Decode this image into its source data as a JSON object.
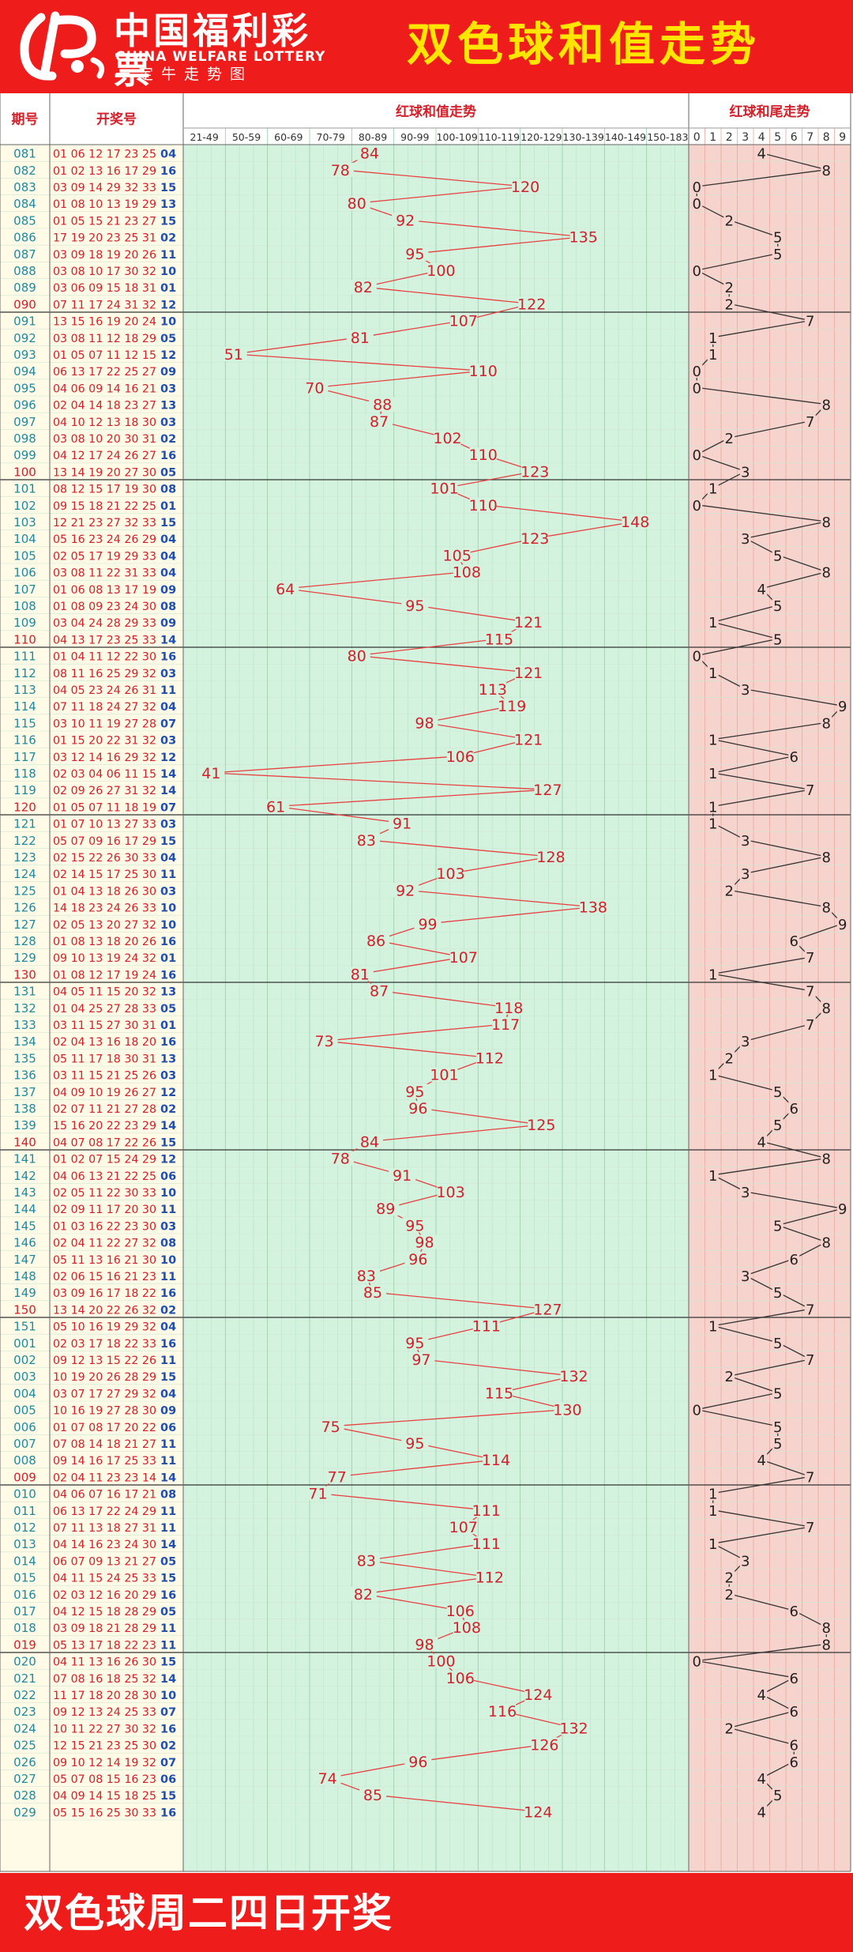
{
  "header": {
    "logo_cn": "中国福利彩票",
    "logo_en": "CHINA WELFARE LOTTERY",
    "logo_sub": "一定牛走势图",
    "title": "双色球和值走势"
  },
  "footer": {
    "text": "双色球周二四日开奖"
  },
  "colors": {
    "brand_red": "#ef1c1c",
    "title_yellow": "#ffe600",
    "issue_blue": "#1e8aa0",
    "red_ball": "#d4202a",
    "blue_ball": "#1f4fb0",
    "sum_panel": "#d4f3df",
    "tail_panel": "#f6d3cc",
    "sum_line": "#e84040",
    "tail_line": "#333333"
  },
  "chart_data": {
    "type": "line",
    "column_headers": {
      "issue": "期号",
      "draw": "开奖号",
      "sum": "红球和值走势",
      "tail": "红球和尾走势"
    },
    "sum_bins": [
      "21-49",
      "50-59",
      "60-69",
      "70-79",
      "80-89",
      "90-99",
      "100-109",
      "110-119",
      "120-129",
      "130-139",
      "140-149",
      "150-183"
    ],
    "tail_digits": [
      "0",
      "1",
      "2",
      "3",
      "4",
      "5",
      "6",
      "7",
      "8",
      "9"
    ],
    "rows": [
      {
        "issue": "081",
        "reds": "01 06 12 17 23 25",
        "blue": "04",
        "sum": "84",
        "tail": "4"
      },
      {
        "issue": "082",
        "reds": "01 02 13 16 17 29",
        "blue": "16",
        "sum": "78",
        "tail": "8"
      },
      {
        "issue": "083",
        "reds": "03 09 14 29 32 33",
        "blue": "15",
        "sum": "120",
        "tail": "0"
      },
      {
        "issue": "084",
        "reds": "01 08 10 13 19 29",
        "blue": "13",
        "sum": "80",
        "tail": "0"
      },
      {
        "issue": "085",
        "reds": "01 05 15 21 23 27",
        "blue": "15",
        "sum": "92",
        "tail": "2"
      },
      {
        "issue": "086",
        "reds": "17 19 20 23 25 31",
        "blue": "02",
        "sum": "135",
        "tail": "5"
      },
      {
        "issue": "087",
        "reds": "03 09 18 19 20 26",
        "blue": "11",
        "sum": "95",
        "tail": "5"
      },
      {
        "issue": "088",
        "reds": "03 08 10 17 30 32",
        "blue": "10",
        "sum": "100",
        "tail": "0"
      },
      {
        "issue": "089",
        "reds": "03 06 09 15 18 31",
        "blue": "01",
        "sum": "82",
        "tail": "2"
      },
      {
        "issue": "090",
        "reds": "07 11 17 24 31 32",
        "blue": "12",
        "sum": "122",
        "tail": "2"
      },
      {
        "issue": "091",
        "reds": "13 15 16 19 20 24",
        "blue": "10",
        "sum": "107",
        "tail": "7"
      },
      {
        "issue": "092",
        "reds": "03 08 11 12 18 29",
        "blue": "05",
        "sum": "81",
        "tail": "1"
      },
      {
        "issue": "093",
        "reds": "01 05 07 11 12 15",
        "blue": "12",
        "sum": "51",
        "tail": "1"
      },
      {
        "issue": "094",
        "reds": "06 13 17 22 25 27",
        "blue": "09",
        "sum": "110",
        "tail": "0"
      },
      {
        "issue": "095",
        "reds": "04 06 09 14 16 21",
        "blue": "03",
        "sum": "70",
        "tail": "0"
      },
      {
        "issue": "096",
        "reds": "02 04 14 18 23 27",
        "blue": "13",
        "sum": "88",
        "tail": "8"
      },
      {
        "issue": "097",
        "reds": "04 10 12 13 18 30",
        "blue": "03",
        "sum": "87",
        "tail": "7"
      },
      {
        "issue": "098",
        "reds": "03 08 10 20 30 31",
        "blue": "02",
        "sum": "102",
        "tail": "2"
      },
      {
        "issue": "099",
        "reds": "04 12 17 24 26 27",
        "blue": "16",
        "sum": "110",
        "tail": "0"
      },
      {
        "issue": "100",
        "reds": "13 14 19 20 27 30",
        "blue": "05",
        "sum": "123",
        "tail": "3"
      },
      {
        "issue": "101",
        "reds": "08 12 15 17 19 30",
        "blue": "08",
        "sum": "101",
        "tail": "1"
      },
      {
        "issue": "102",
        "reds": "09 15 18 21 22 25",
        "blue": "01",
        "sum": "110",
        "tail": "0"
      },
      {
        "issue": "103",
        "reds": "12 21 23 27 32 33",
        "blue": "15",
        "sum": "148",
        "tail": "8"
      },
      {
        "issue": "104",
        "reds": "05 16 23 24 26 29",
        "blue": "04",
        "sum": "123",
        "tail": "3"
      },
      {
        "issue": "105",
        "reds": "02 05 17 19 29 33",
        "blue": "04",
        "sum": "105",
        "tail": "5"
      },
      {
        "issue": "106",
        "reds": "03 08 11 22 31 33",
        "blue": "04",
        "sum": "108",
        "tail": "8"
      },
      {
        "issue": "107",
        "reds": "01 06 08 13 17 19",
        "blue": "09",
        "sum": "64",
        "tail": "4"
      },
      {
        "issue": "108",
        "reds": "01 08 09 23 24 30",
        "blue": "08",
        "sum": "95",
        "tail": "5"
      },
      {
        "issue": "109",
        "reds": "03 04 24 28 29 33",
        "blue": "09",
        "sum": "121",
        "tail": "1"
      },
      {
        "issue": "110",
        "reds": "04 13 17 23 25 33",
        "blue": "14",
        "sum": "115",
        "tail": "5"
      },
      {
        "issue": "111",
        "reds": "01 04 11 12 22 30",
        "blue": "16",
        "sum": "80",
        "tail": "0"
      },
      {
        "issue": "112",
        "reds": "08 11 16 25 29 32",
        "blue": "03",
        "sum": "121",
        "tail": "1"
      },
      {
        "issue": "113",
        "reds": "04 05 23 24 26 31",
        "blue": "11",
        "sum": "113",
        "tail": "3"
      },
      {
        "issue": "114",
        "reds": "07 11 18 24 27 32",
        "blue": "04",
        "sum": "119",
        "tail": "9"
      },
      {
        "issue": "115",
        "reds": "03 10 11 19 27 28",
        "blue": "07",
        "sum": "98",
        "tail": "8"
      },
      {
        "issue": "116",
        "reds": "01 15 20 22 31 32",
        "blue": "03",
        "sum": "121",
        "tail": "1"
      },
      {
        "issue": "117",
        "reds": "03 12 14 16 29 32",
        "blue": "12",
        "sum": "106",
        "tail": "6"
      },
      {
        "issue": "118",
        "reds": "02 03 04 06 11 15",
        "blue": "14",
        "sum": "41",
        "tail": "1"
      },
      {
        "issue": "119",
        "reds": "02 09 26 27 31 32",
        "blue": "14",
        "sum": "127",
        "tail": "7"
      },
      {
        "issue": "120",
        "reds": "01 05 07 11 18 19",
        "blue": "07",
        "sum": "61",
        "tail": "1"
      },
      {
        "issue": "121",
        "reds": "01 07 10 13 27 33",
        "blue": "03",
        "sum": "91",
        "tail": "1"
      },
      {
        "issue": "122",
        "reds": "05 07 09 16 17 29",
        "blue": "15",
        "sum": "83",
        "tail": "3"
      },
      {
        "issue": "123",
        "reds": "02 15 22 26 30 33",
        "blue": "04",
        "sum": "128",
        "tail": "8"
      },
      {
        "issue": "124",
        "reds": "02 14 15 17 25 30",
        "blue": "11",
        "sum": "103",
        "tail": "3"
      },
      {
        "issue": "125",
        "reds": "01 04 13 18 26 30",
        "blue": "03",
        "sum": "92",
        "tail": "2"
      },
      {
        "issue": "126",
        "reds": "14 18 23 24 26 33",
        "blue": "10",
        "sum": "138",
        "tail": "8"
      },
      {
        "issue": "127",
        "reds": "02 05 13 20 27 32",
        "blue": "10",
        "sum": "99",
        "tail": "9"
      },
      {
        "issue": "128",
        "reds": "01 08 13 18 20 26",
        "blue": "16",
        "sum": "86",
        "tail": "6"
      },
      {
        "issue": "129",
        "reds": "09 10 13 19 24 32",
        "blue": "01",
        "sum": "107",
        "tail": "7"
      },
      {
        "issue": "130",
        "reds": "01 08 12 17 19 24",
        "blue": "16",
        "sum": "81",
        "tail": "1"
      },
      {
        "issue": "131",
        "reds": "04 05 11 15 20 32",
        "blue": "13",
        "sum": "87",
        "tail": "7"
      },
      {
        "issue": "132",
        "reds": "01 04 25 27 28 33",
        "blue": "05",
        "sum": "118",
        "tail": "8"
      },
      {
        "issue": "133",
        "reds": "03 11 15 27 30 31",
        "blue": "01",
        "sum": "117",
        "tail": "7"
      },
      {
        "issue": "134",
        "reds": "02 04 13 16 18 20",
        "blue": "16",
        "sum": "73",
        "tail": "3"
      },
      {
        "issue": "135",
        "reds": "05 11 17 18 30 31",
        "blue": "13",
        "sum": "112",
        "tail": "2"
      },
      {
        "issue": "136",
        "reds": "03 11 15 21 25 26",
        "blue": "03",
        "sum": "101",
        "tail": "1"
      },
      {
        "issue": "137",
        "reds": "04 09 10 19 26 27",
        "blue": "12",
        "sum": "95",
        "tail": "5"
      },
      {
        "issue": "138",
        "reds": "02 07 11 21 27 28",
        "blue": "02",
        "sum": "96",
        "tail": "6"
      },
      {
        "issue": "139",
        "reds": "15 16 20 22 23 29",
        "blue": "14",
        "sum": "125",
        "tail": "5"
      },
      {
        "issue": "140",
        "reds": "04 07 08 17 22 26",
        "blue": "15",
        "sum": "84",
        "tail": "4"
      },
      {
        "issue": "141",
        "reds": "01 02 07 15 24 29",
        "blue": "12",
        "sum": "78",
        "tail": "8"
      },
      {
        "issue": "142",
        "reds": "04 06 13 21 22 25",
        "blue": "06",
        "sum": "91",
        "tail": "1"
      },
      {
        "issue": "143",
        "reds": "02 05 11 22 30 33",
        "blue": "10",
        "sum": "103",
        "tail": "3"
      },
      {
        "issue": "144",
        "reds": "02 09 11 17 20 30",
        "blue": "11",
        "sum": "89",
        "tail": "9"
      },
      {
        "issue": "145",
        "reds": "01 03 16 22 23 30",
        "blue": "03",
        "sum": "95",
        "tail": "5"
      },
      {
        "issue": "146",
        "reds": "02 04 11 22 27 32",
        "blue": "08",
        "sum": "98",
        "tail": "8"
      },
      {
        "issue": "147",
        "reds": "05 11 13 16 21 30",
        "blue": "10",
        "sum": "96",
        "tail": "6"
      },
      {
        "issue": "148",
        "reds": "02 06 15 16 21 23",
        "blue": "11",
        "sum": "83",
        "tail": "3"
      },
      {
        "issue": "149",
        "reds": "03 09 16 17 18 22",
        "blue": "16",
        "sum": "85",
        "tail": "5"
      },
      {
        "issue": "150",
        "reds": "13 14 20 22 26 32",
        "blue": "02",
        "sum": "127",
        "tail": "7"
      },
      {
        "issue": "151",
        "reds": "05 10 16 19 29 32",
        "blue": "04",
        "sum": "111",
        "tail": "1"
      },
      {
        "issue": "001",
        "reds": "02 03 17 18 22 33",
        "blue": "16",
        "sum": "95",
        "tail": "5"
      },
      {
        "issue": "002",
        "reds": "09 12 13 15 22 26",
        "blue": "11",
        "sum": "97",
        "tail": "7"
      },
      {
        "issue": "003",
        "reds": "10 19 20 26 28 29",
        "blue": "15",
        "sum": "132",
        "tail": "2"
      },
      {
        "issue": "004",
        "reds": "03 07 17 27 29 32",
        "blue": "04",
        "sum": "115",
        "tail": "5"
      },
      {
        "issue": "005",
        "reds": "10 16 19 27 28 30",
        "blue": "09",
        "sum": "130",
        "tail": "0"
      },
      {
        "issue": "006",
        "reds": "01 07 08 17 20 22",
        "blue": "06",
        "sum": "75",
        "tail": "5"
      },
      {
        "issue": "007",
        "reds": "07 08 14 18 21 27",
        "blue": "11",
        "sum": "95",
        "tail": "5"
      },
      {
        "issue": "008",
        "reds": "09 14 16 17 25 33",
        "blue": "11",
        "sum": "114",
        "tail": "4"
      },
      {
        "issue": "009",
        "reds": "02 04 11 23 23 14",
        "blue": "14",
        "sum": "77",
        "tail": "7"
      },
      {
        "issue": "010",
        "reds": "04 06 07 16 17 21",
        "blue": "08",
        "sum": "71",
        "tail": "1"
      },
      {
        "issue": "011",
        "reds": "06 13 17 22 24 29",
        "blue": "11",
        "sum": "111",
        "tail": "1"
      },
      {
        "issue": "012",
        "reds": "07 11 13 18 27 31",
        "blue": "11",
        "sum": "107",
        "tail": "7"
      },
      {
        "issue": "013",
        "reds": "04 14 16 23 24 30",
        "blue": "14",
        "sum": "111",
        "tail": "1"
      },
      {
        "issue": "014",
        "reds": "06 07 09 13 21 27",
        "blue": "05",
        "sum": "83",
        "tail": "3"
      },
      {
        "issue": "015",
        "reds": "04 11 15 24 25 33",
        "blue": "15",
        "sum": "112",
        "tail": "2"
      },
      {
        "issue": "016",
        "reds": "02 03 12 16 20 29",
        "blue": "16",
        "sum": "82",
        "tail": "2"
      },
      {
        "issue": "017",
        "reds": "04 12 15 18 28 29",
        "blue": "05",
        "sum": "106",
        "tail": "6"
      },
      {
        "issue": "018",
        "reds": "03 09 18 21 28 29",
        "blue": "11",
        "sum": "108",
        "tail": "8"
      },
      {
        "issue": "019",
        "reds": "05 13 17 18 22 23",
        "blue": "11",
        "sum": "98",
        "tail": "8"
      },
      {
        "issue": "020",
        "reds": "04 11 13 16 26 30",
        "blue": "15",
        "sum": "100",
        "tail": "0"
      },
      {
        "issue": "021",
        "reds": "07 08 16 18 25 32",
        "blue": "14",
        "sum": "106",
        "tail": "6"
      },
      {
        "issue": "022",
        "reds": "11 17 18 20 28 30",
        "blue": "10",
        "sum": "124",
        "tail": "4"
      },
      {
        "issue": "023",
        "reds": "09 12 13 24 25 33",
        "blue": "07",
        "sum": "116",
        "tail": "6"
      },
      {
        "issue": "024",
        "reds": "10 11 22 27 30 32",
        "blue": "16",
        "sum": "132",
        "tail": "2"
      },
      {
        "issue": "025",
        "reds": "12 15 21 23 25 30",
        "blue": "02",
        "sum": "126",
        "tail": "6"
      },
      {
        "issue": "026",
        "reds": "09 10 12 14 19 32",
        "blue": "07",
        "sum": "96",
        "tail": "6"
      },
      {
        "issue": "027",
        "reds": "05 07 08 15 16 23",
        "blue": "06",
        "sum": "74",
        "tail": "4"
      },
      {
        "issue": "028",
        "reds": "04 09 14 15 18 25",
        "blue": "15",
        "sum": "85",
        "tail": "5"
      },
      {
        "issue": "029",
        "reds": "05 15 16 25 30 33",
        "blue": "16",
        "sum": "124",
        "tail": "4"
      }
    ]
  }
}
